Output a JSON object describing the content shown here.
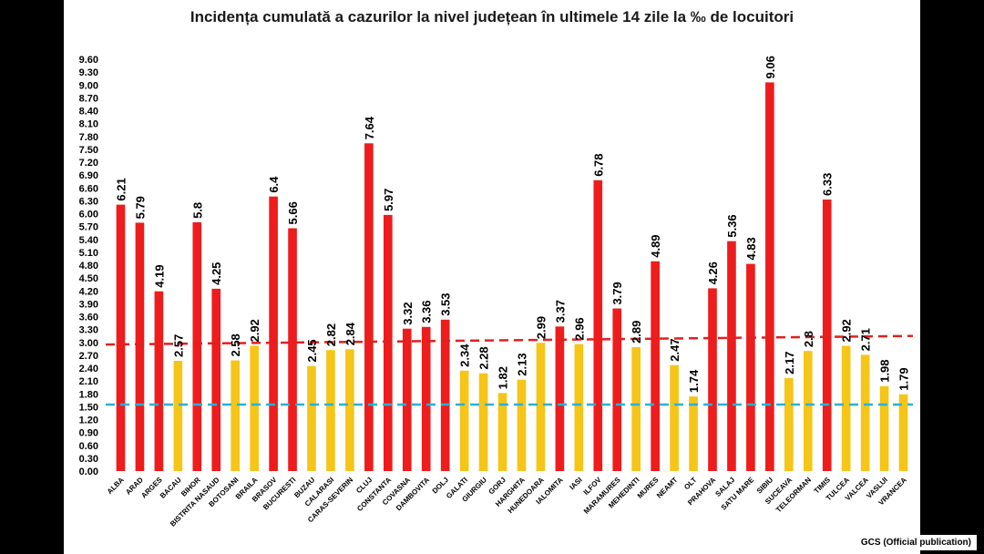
{
  "chart_data": {
    "type": "bar",
    "title": "Incidența cumulată a cazurilor la nivel județean în ultimele 14 zile la ‰ de locuitori",
    "xlabel": "",
    "ylabel": "",
    "ylim": [
      0,
      9.6
    ],
    "yticks": [
      "0.00",
      "0.30",
      "0.60",
      "0.90",
      "1.20",
      "1.50",
      "1.80",
      "2.10",
      "2.40",
      "2.70",
      "3.00",
      "3.30",
      "3.60",
      "3.90",
      "4.20",
      "4.50",
      "4.80",
      "5.10",
      "5.40",
      "5.70",
      "6.00",
      "6.30",
      "6.60",
      "6.90",
      "7.20",
      "7.50",
      "7.80",
      "8.10",
      "8.40",
      "8.70",
      "9.00",
      "9.30",
      "9.60"
    ],
    "grid": false,
    "categories": [
      "ALBA",
      "ARAD",
      "ARGES",
      "BACAU",
      "BIHOR",
      "BISTRITA NASAUD",
      "BOTOSANI",
      "BRAILA",
      "BRASOV",
      "BUCURESTI",
      "BUZAU",
      "CALARASI",
      "CARAS-SEVERIN",
      "CLUJ",
      "CONSTANTA",
      "COVASNA",
      "DAMBOVITA",
      "DOLJ",
      "GALATI",
      "GIURGIU",
      "GORJ",
      "HARGHITA",
      "HUNEDOARA",
      "IALOMITA",
      "IASI",
      "ILFOV",
      "MARAMURES",
      "MEHEDINTI",
      "MURES",
      "NEAMT",
      "OLT",
      "PRAHOVA",
      "SALAJ",
      "SATU MARE",
      "SIBIU",
      "SUCEAVA",
      "TELEORMAN",
      "TIMIS",
      "TULCEA",
      "VALCEA",
      "VASLUI",
      "VRANCEA"
    ],
    "values": [
      6.21,
      5.79,
      4.19,
      2.57,
      5.8,
      4.25,
      2.58,
      2.92,
      6.4,
      5.66,
      2.45,
      2.82,
      2.84,
      7.64,
      5.97,
      3.32,
      3.36,
      3.53,
      2.34,
      2.28,
      1.82,
      2.13,
      2.99,
      3.37,
      2.96,
      6.78,
      3.79,
      2.89,
      4.89,
      2.47,
      1.74,
      4.26,
      5.36,
      4.83,
      9.06,
      2.17,
      2.8,
      6.33,
      2.92,
      2.71,
      1.98,
      1.79
    ],
    "value_labels": [
      "6.21",
      "5.79",
      "4.19",
      "2.57",
      "5.8",
      "4.25",
      "2.58",
      "2.92",
      "6.4",
      "5.66",
      "2.45",
      "2.82",
      "2.84",
      "7.64",
      "5.97",
      "3.32",
      "3.36",
      "3.53",
      "2.34",
      "2.28",
      "1.82",
      "2.13",
      "2.99",
      "3.37",
      "2.96",
      "6.78",
      "3.79",
      "2.89",
      "4.89",
      "2.47",
      "1.74",
      "4.26",
      "5.36",
      "4.83",
      "9.06",
      "2.17",
      "2.8",
      "6.33",
      "2.92",
      "2.71",
      "1.98",
      "1.79"
    ],
    "colors": {
      "high": "#ee1c1c",
      "low": "#f5c518",
      "threshold_high_line": "#e02020",
      "threshold_low_line": "#2ab0d6"
    },
    "color_threshold": 3.0,
    "reference_lines": [
      {
        "style": "dashed",
        "color": "#e02020",
        "y_start": 2.95,
        "y_end": 3.15
      },
      {
        "style": "dashed",
        "color": "#2ab0d6",
        "y_start": 1.55,
        "y_end": 1.55
      }
    ]
  },
  "source_label": "GCS (Official publication)"
}
